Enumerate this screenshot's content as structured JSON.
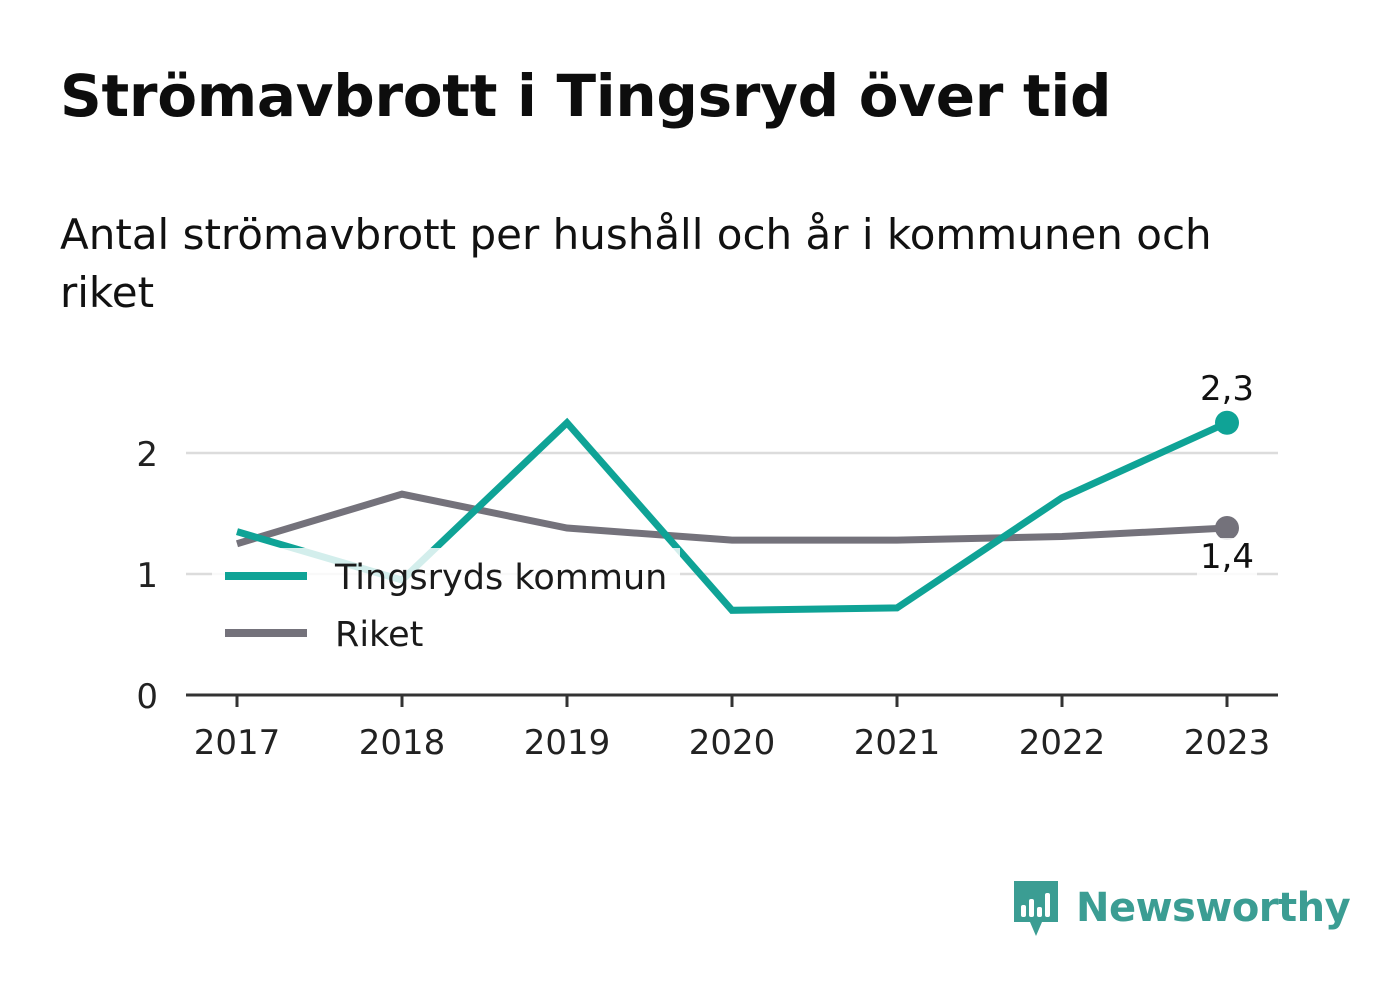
{
  "title": "Strömavbrott i Tingsryd över tid",
  "subtitle": "Antal strömavbrott per hushåll och år i kommunen och riket",
  "brand": {
    "name": "Newsworthy",
    "color": "#3b9d93",
    "icon": "newsworthy-logo-icon"
  },
  "chart_data": {
    "type": "line",
    "x": [
      "2017",
      "2018",
      "2019",
      "2020",
      "2021",
      "2022",
      "2023"
    ],
    "ylim": [
      0,
      2.4
    ],
    "yticks": [
      0,
      1,
      2
    ],
    "grid": true,
    "legend_position": "inside-bottom-left",
    "series": [
      {
        "name": "Tingsryds kommun",
        "color": "#0fa396",
        "values": [
          1.35,
          0.95,
          2.25,
          0.7,
          0.72,
          1.63,
          2.25
        ],
        "end_label": "2,3"
      },
      {
        "name": "Riket",
        "color": "#74727b",
        "values": [
          1.25,
          1.66,
          1.38,
          1.28,
          1.28,
          1.31,
          1.38
        ],
        "end_label": "1,4"
      }
    ]
  }
}
